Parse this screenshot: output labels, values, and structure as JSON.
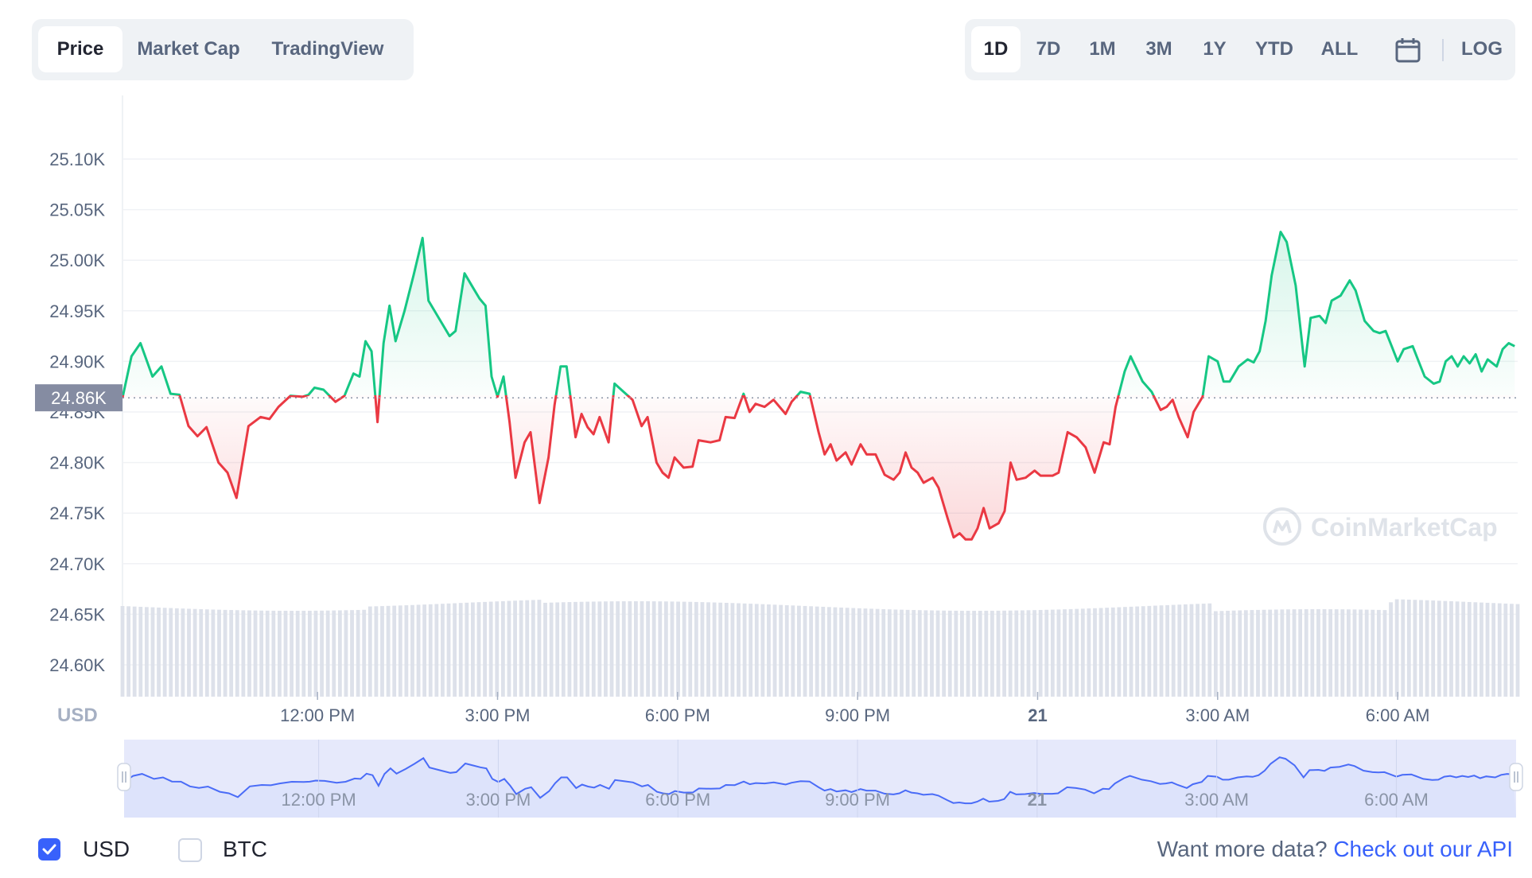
{
  "tabs": {
    "price": "Price",
    "market_cap": "Market Cap",
    "tradingview": "TradingView"
  },
  "ranges": {
    "d1": "1D",
    "d7": "7D",
    "m1": "1M",
    "m3": "3M",
    "y1": "1Y",
    "ytd": "YTD",
    "all": "ALL",
    "log": "LOG"
  },
  "icons": {
    "calendar": "calendar-icon",
    "watermark_logo": "coinmarketcap-logo"
  },
  "watermark": "CoinMarketCap",
  "currency_label": "USD",
  "legend": {
    "usd": "USD",
    "btc": "BTC"
  },
  "api": {
    "text": "Want more data?",
    "link": "Check out our API"
  },
  "colors": {
    "up": "#16c784",
    "down": "#ea3943",
    "accent": "#3861fb",
    "muted": "#58667e"
  },
  "chart_data": {
    "type": "line",
    "ylim": [
      24550,
      25140
    ],
    "yticks": [
      "25.10K",
      "25.05K",
      "25.00K",
      "24.95K",
      "24.90K",
      "24.85K",
      "24.80K",
      "24.75K",
      "24.70K",
      "24.65K",
      "24.60K"
    ],
    "ytick_values": [
      25100,
      25050,
      25000,
      24950,
      24900,
      24850,
      24800,
      24750,
      24700,
      24650,
      24600
    ],
    "reference_label": "24.86K",
    "reference_value": 24864,
    "x_ticks": [
      "12:00 PM",
      "3:00 PM",
      "6:00 PM",
      "9:00 PM",
      "21",
      "3:00 AM",
      "6:00 AM"
    ],
    "x_tick_hours": [
      3.25,
      6.25,
      9.25,
      12.25,
      15.25,
      18.25,
      21.25
    ],
    "x_range_hours": [
      0,
      23.25
    ],
    "series": [
      {
        "values": [
          [
            0.0,
            24864
          ],
          [
            0.15,
            24905
          ],
          [
            0.3,
            24918
          ],
          [
            0.5,
            24885
          ],
          [
            0.65,
            24895
          ],
          [
            0.8,
            24868
          ],
          [
            0.95,
            24867
          ],
          [
            1.1,
            24836
          ],
          [
            1.25,
            24826
          ],
          [
            1.4,
            24835
          ],
          [
            1.6,
            24800
          ],
          [
            1.75,
            24790
          ],
          [
            1.9,
            24765
          ],
          [
            2.1,
            24836
          ],
          [
            2.3,
            24845
          ],
          [
            2.45,
            24843
          ],
          [
            2.6,
            24855
          ],
          [
            2.8,
            24866
          ],
          [
            3.0,
            24865
          ],
          [
            3.1,
            24867
          ],
          [
            3.2,
            24874
          ],
          [
            3.35,
            24872
          ],
          [
            3.55,
            24860
          ],
          [
            3.7,
            24866
          ],
          [
            3.85,
            24888
          ],
          [
            3.95,
            24885
          ],
          [
            4.05,
            24920
          ],
          [
            4.15,
            24910
          ],
          [
            4.25,
            24840
          ],
          [
            4.35,
            24918
          ],
          [
            4.45,
            24955
          ],
          [
            4.55,
            24920
          ],
          [
            4.7,
            24950
          ],
          [
            4.85,
            24985
          ],
          [
            5.0,
            25022
          ],
          [
            5.1,
            24960
          ],
          [
            5.3,
            24940
          ],
          [
            5.45,
            24925
          ],
          [
            5.55,
            24930
          ],
          [
            5.7,
            24987
          ],
          [
            5.85,
            24972
          ],
          [
            5.95,
            24962
          ],
          [
            6.05,
            24955
          ],
          [
            6.15,
            24885
          ],
          [
            6.25,
            24865
          ],
          [
            6.35,
            24885
          ],
          [
            6.45,
            24840
          ],
          [
            6.55,
            24785
          ],
          [
            6.7,
            24820
          ],
          [
            6.8,
            24830
          ],
          [
            6.95,
            24760
          ],
          [
            7.1,
            24805
          ],
          [
            7.2,
            24857
          ],
          [
            7.3,
            24895
          ],
          [
            7.4,
            24895
          ],
          [
            7.55,
            24825
          ],
          [
            7.65,
            24848
          ],
          [
            7.75,
            24835
          ],
          [
            7.85,
            24828
          ],
          [
            7.95,
            24845
          ],
          [
            8.1,
            24820
          ],
          [
            8.2,
            24878
          ],
          [
            8.35,
            24870
          ],
          [
            8.5,
            24862
          ],
          [
            8.65,
            24836
          ],
          [
            8.75,
            24845
          ],
          [
            8.9,
            24800
          ],
          [
            9.0,
            24790
          ],
          [
            9.1,
            24785
          ],
          [
            9.2,
            24805
          ],
          [
            9.35,
            24795
          ],
          [
            9.5,
            24796
          ],
          [
            9.6,
            24822
          ],
          [
            9.8,
            24820
          ],
          [
            9.95,
            24822
          ],
          [
            10.05,
            24845
          ],
          [
            10.2,
            24844
          ],
          [
            10.35,
            24868
          ],
          [
            10.45,
            24850
          ],
          [
            10.55,
            24858
          ],
          [
            10.7,
            24855
          ],
          [
            10.85,
            24862
          ],
          [
            10.95,
            24855
          ],
          [
            11.05,
            24848
          ],
          [
            11.15,
            24860
          ],
          [
            11.3,
            24870
          ],
          [
            11.45,
            24868
          ],
          [
            11.6,
            24830
          ],
          [
            11.7,
            24808
          ],
          [
            11.8,
            24818
          ],
          [
            11.9,
            24802
          ],
          [
            12.05,
            24810
          ],
          [
            12.15,
            24798
          ],
          [
            12.3,
            24818
          ],
          [
            12.4,
            24808
          ],
          [
            12.55,
            24808
          ],
          [
            12.7,
            24788
          ],
          [
            12.85,
            24783
          ],
          [
            12.95,
            24790
          ],
          [
            13.05,
            24810
          ],
          [
            13.15,
            24795
          ],
          [
            13.25,
            24790
          ],
          [
            13.35,
            24780
          ],
          [
            13.5,
            24785
          ],
          [
            13.6,
            24775
          ],
          [
            13.75,
            24745
          ],
          [
            13.85,
            24726
          ],
          [
            13.95,
            24730
          ],
          [
            14.05,
            24724
          ],
          [
            14.15,
            24724
          ],
          [
            14.25,
            24735
          ],
          [
            14.35,
            24755
          ],
          [
            14.45,
            24735
          ],
          [
            14.6,
            24740
          ],
          [
            14.7,
            24752
          ],
          [
            14.8,
            24800
          ],
          [
            14.9,
            24783
          ],
          [
            15.05,
            24785
          ],
          [
            15.2,
            24792
          ],
          [
            15.3,
            24787
          ],
          [
            15.5,
            24787
          ],
          [
            15.6,
            24790
          ],
          [
            15.75,
            24830
          ],
          [
            15.9,
            24825
          ],
          [
            16.05,
            24815
          ],
          [
            16.2,
            24790
          ],
          [
            16.35,
            24820
          ],
          [
            16.45,
            24818
          ],
          [
            16.55,
            24855
          ],
          [
            16.7,
            24890
          ],
          [
            16.8,
            24905
          ],
          [
            17.0,
            24880
          ],
          [
            17.15,
            24870
          ],
          [
            17.3,
            24852
          ],
          [
            17.4,
            24855
          ],
          [
            17.5,
            24862
          ],
          [
            17.6,
            24845
          ],
          [
            17.75,
            24825
          ],
          [
            17.85,
            24850
          ],
          [
            18.0,
            24865
          ],
          [
            18.1,
            24905
          ],
          [
            18.25,
            24900
          ],
          [
            18.35,
            24880
          ],
          [
            18.45,
            24880
          ],
          [
            18.6,
            24895
          ],
          [
            18.75,
            24902
          ],
          [
            18.85,
            24899
          ],
          [
            18.95,
            24910
          ],
          [
            19.05,
            24940
          ],
          [
            19.15,
            24985
          ],
          [
            19.3,
            25028
          ],
          [
            19.4,
            25018
          ],
          [
            19.55,
            24975
          ],
          [
            19.7,
            24895
          ],
          [
            19.8,
            24943
          ],
          [
            19.95,
            24945
          ],
          [
            20.05,
            24938
          ],
          [
            20.15,
            24960
          ],
          [
            20.3,
            24965
          ],
          [
            20.45,
            24980
          ],
          [
            20.55,
            24970
          ],
          [
            20.7,
            24940
          ],
          [
            20.85,
            24930
          ],
          [
            20.95,
            24928
          ],
          [
            21.05,
            24930
          ],
          [
            21.15,
            24915
          ],
          [
            21.25,
            24900
          ],
          [
            21.35,
            24912
          ],
          [
            21.5,
            24915
          ],
          [
            21.6,
            24900
          ],
          [
            21.7,
            24885
          ],
          [
            21.85,
            24878
          ],
          [
            21.95,
            24880
          ],
          [
            22.05,
            24900
          ],
          [
            22.15,
            24905
          ],
          [
            22.25,
            24895
          ],
          [
            22.35,
            24905
          ],
          [
            22.45,
            24898
          ],
          [
            22.55,
            24907
          ],
          [
            22.65,
            24890
          ],
          [
            22.75,
            24902
          ],
          [
            22.9,
            24895
          ],
          [
            23.0,
            24912
          ],
          [
            23.1,
            24918
          ],
          [
            23.2,
            24915
          ]
        ]
      }
    ]
  }
}
